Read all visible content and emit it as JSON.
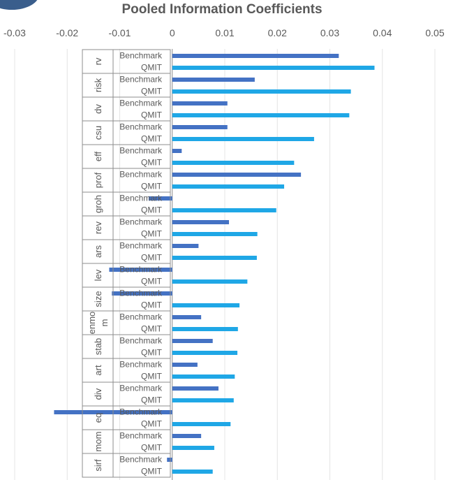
{
  "chart_data": {
    "type": "bar",
    "orientation": "horizontal",
    "title": "Pooled Information Coefficients",
    "xlim": [
      -0.03,
      0.05
    ],
    "x_ticks": [
      "-0.03",
      "-0.02",
      "-0.01",
      "0",
      "0.01",
      "0.02",
      "0.03",
      "0.04",
      "0.05"
    ],
    "grid": true,
    "legend": "none",
    "colors": {
      "Benchmark": "#4472c4",
      "QMIT": "#1fa7e6"
    },
    "series_labels": [
      "Benchmark",
      "QMIT"
    ],
    "groups": [
      {
        "name": "rv",
        "values": {
          "Benchmark": 0.0317,
          "QMIT": 0.0385
        }
      },
      {
        "name": "risk",
        "values": {
          "Benchmark": 0.0157,
          "QMIT": 0.034
        }
      },
      {
        "name": "dv",
        "values": {
          "Benchmark": 0.0105,
          "QMIT": 0.0337
        }
      },
      {
        "name": "csu",
        "values": {
          "Benchmark": 0.0105,
          "QMIT": 0.027
        }
      },
      {
        "name": "eff",
        "values": {
          "Benchmark": 0.0018,
          "QMIT": 0.0232
        }
      },
      {
        "name": "prof",
        "values": {
          "Benchmark": 0.0245,
          "QMIT": 0.0213
        }
      },
      {
        "name": "groh",
        "values": {
          "Benchmark": -0.0045,
          "QMIT": 0.0198
        }
      },
      {
        "name": "rev",
        "values": {
          "Benchmark": 0.0108,
          "QMIT": 0.0162
        }
      },
      {
        "name": "ars",
        "values": {
          "Benchmark": 0.005,
          "QMIT": 0.0161
        }
      },
      {
        "name": "lev",
        "values": {
          "Benchmark": -0.012,
          "QMIT": 0.0143
        }
      },
      {
        "name": "size",
        "values": {
          "Benchmark": -0.0115,
          "QMIT": 0.0128
        }
      },
      {
        "name": "enmo m",
        "values": {
          "Benchmark": 0.0055,
          "QMIT": 0.0125
        }
      },
      {
        "name": "stab",
        "values": {
          "Benchmark": 0.0077,
          "QMIT": 0.0124
        }
      },
      {
        "name": "art",
        "values": {
          "Benchmark": 0.0048,
          "QMIT": 0.0119
        }
      },
      {
        "name": "div",
        "values": {
          "Benchmark": 0.0088,
          "QMIT": 0.0117
        }
      },
      {
        "name": "eq",
        "values": {
          "Benchmark": -0.0225,
          "QMIT": 0.0111
        }
      },
      {
        "name": "mom",
        "values": {
          "Benchmark": 0.0055,
          "QMIT": 0.008
        }
      },
      {
        "name": "sirf",
        "values": {
          "Benchmark": -0.001,
          "QMIT": 0.0077
        }
      }
    ]
  }
}
